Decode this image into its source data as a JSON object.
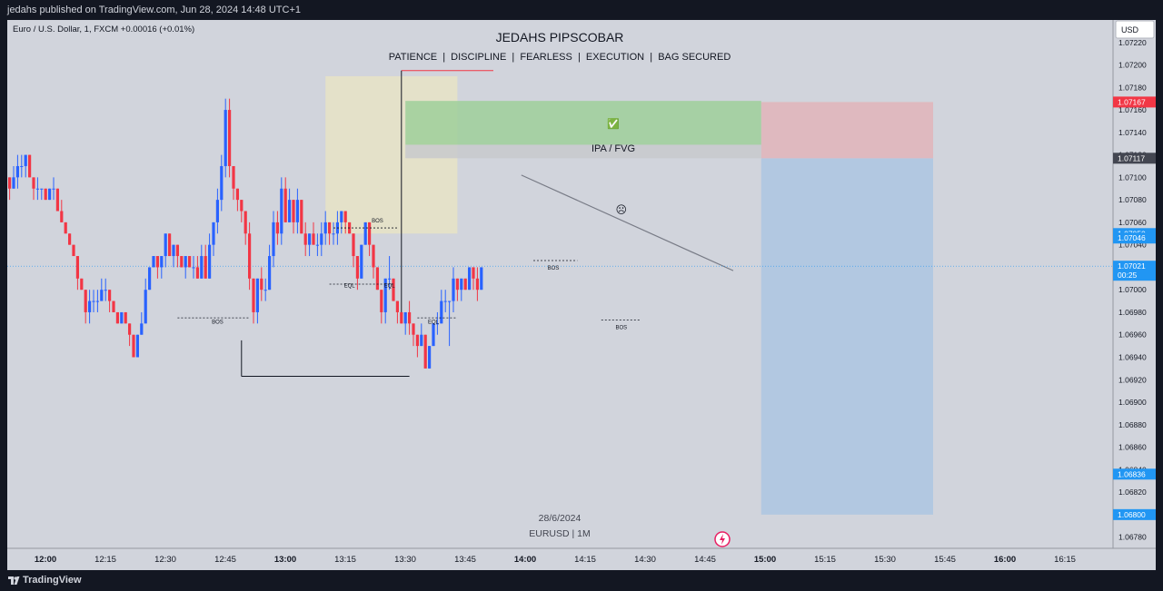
{
  "header": {
    "published_text": "jedahs published on TradingView.com, Jun 28, 2024 14:48 UTC+1"
  },
  "footer": {
    "brand": "TradingView"
  },
  "chart_data": {
    "type": "candlestick",
    "symbol_line": "Euro / U.S. Dollar, 1, FXCM  +0.00016 (+0.01%)",
    "title": "JEDAHS PIPSCOBAR",
    "subtitle": "PATIENCE  |  DISCIPLINE  |  FEARLESS  |  EXECUTION  |  BAG SECURED",
    "date_label": "28/6/2024",
    "instrument_label": "EURUSD | 1M",
    "currency": "USD",
    "ylim": [
      1.0677,
      1.0724
    ],
    "y_ticks": [
      "1.07220",
      "1.07200",
      "1.07180",
      "1.07160",
      "1.07140",
      "1.07120",
      "1.07100",
      "1.07080",
      "1.07060",
      "1.07040",
      "1.07020",
      "1.07000",
      "1.06980",
      "1.06960",
      "1.06940",
      "1.06920",
      "1.06900",
      "1.06880",
      "1.06860",
      "1.06840",
      "1.06820",
      "1.06800",
      "1.06780"
    ],
    "x_ticks": [
      {
        "label": "12:00",
        "bold": true,
        "minute": 0
      },
      {
        "label": "12:15",
        "bold": false,
        "minute": 15
      },
      {
        "label": "12:30",
        "bold": false,
        "minute": 30
      },
      {
        "label": "12:45",
        "bold": false,
        "minute": 45
      },
      {
        "label": "13:00",
        "bold": true,
        "minute": 60
      },
      {
        "label": "13:15",
        "bold": false,
        "minute": 75
      },
      {
        "label": "13:30",
        "bold": false,
        "minute": 90
      },
      {
        "label": "13:45",
        "bold": false,
        "minute": 105
      },
      {
        "label": "14:00",
        "bold": true,
        "minute": 120
      },
      {
        "label": "14:15",
        "bold": false,
        "minute": 135
      },
      {
        "label": "14:30",
        "bold": false,
        "minute": 150
      },
      {
        "label": "14:45",
        "bold": false,
        "minute": 165
      },
      {
        "label": "15:00",
        "bold": true,
        "minute": 180
      },
      {
        "label": "15:15",
        "bold": false,
        "minute": 195
      },
      {
        "label": "15:30",
        "bold": false,
        "minute": 210
      },
      {
        "label": "15:45",
        "bold": false,
        "minute": 225
      },
      {
        "label": "16:00",
        "bold": true,
        "minute": 240
      },
      {
        "label": "16:15",
        "bold": false,
        "minute": 255
      }
    ],
    "price_labels": [
      {
        "value": 1.07167,
        "text": "1.07167",
        "color": "#f23645"
      },
      {
        "value": 1.07117,
        "text": "1.07117",
        "color": "#434651"
      },
      {
        "value": 1.0705,
        "text": "1.07050",
        "color": "#2196f3"
      },
      {
        "value": 1.07046,
        "text": "1.07046",
        "color": "#2196f3"
      },
      {
        "value": 1.07021,
        "text": "1.07021",
        "sub": "00:25",
        "color": "#2196f3"
      },
      {
        "value": 1.06836,
        "text": "1.06836",
        "color": "#2196f3"
      },
      {
        "value": 1.068,
        "text": "1.06800",
        "color": "#2196f3"
      }
    ],
    "current_price": 1.07021,
    "colors": {
      "up": "#2962ff",
      "down": "#f23645",
      "background": "#d1d4dc",
      "axis": "#131722"
    },
    "candles_start_minute": -14,
    "candles": [
      [
        1.0708,
        1.0709,
        1.0707,
        1.0708
      ],
      [
        1.0708,
        1.071,
        1.0708,
        1.071
      ],
      [
        1.071,
        1.0711,
        1.0709,
        1.071
      ],
      [
        1.071,
        1.071,
        1.0708,
        1.0709
      ],
      [
        1.0709,
        1.0711,
        1.0709,
        1.071
      ],
      [
        1.071,
        1.0712,
        1.0709,
        1.0711
      ],
      [
        1.0711,
        1.0712,
        1.071,
        1.0711
      ],
      [
        1.0711,
        1.0712,
        1.071,
        1.0712
      ],
      [
        1.0712,
        1.0712,
        1.071,
        1.071
      ],
      [
        1.071,
        1.071,
        1.0708,
        1.0709
      ],
      [
        1.0709,
        1.071,
        1.0708,
        1.0709
      ],
      [
        1.0709,
        1.0709,
        1.0708,
        1.0709
      ],
      [
        1.0709,
        1.0709,
        1.0708,
        1.0708
      ],
      [
        1.0708,
        1.0709,
        1.0708,
        1.0709
      ],
      [
        1.0709,
        1.071,
        1.0708,
        1.0709
      ],
      [
        1.0709,
        1.0709,
        1.0707,
        1.0707
      ],
      [
        1.0707,
        1.0708,
        1.0706,
        1.0706
      ],
      [
        1.0706,
        1.0706,
        1.0705,
        1.0705
      ],
      [
        1.0705,
        1.0705,
        1.0704,
        1.0704
      ],
      [
        1.0704,
        1.0704,
        1.0703,
        1.0703
      ],
      [
        1.0703,
        1.0703,
        1.07,
        1.0701
      ],
      [
        1.0701,
        1.0701,
        1.07,
        1.07
      ],
      [
        1.07,
        1.07,
        1.0697,
        1.0698
      ],
      [
        1.0698,
        1.07,
        1.0697,
        1.0699
      ],
      [
        1.0699,
        1.07,
        1.0698,
        1.0699
      ],
      [
        1.0699,
        1.07,
        1.0698,
        1.0699
      ],
      [
        1.0699,
        1.0701,
        1.0699,
        1.07
      ],
      [
        1.07,
        1.0701,
        1.0699,
        1.07
      ],
      [
        1.07,
        1.07,
        1.0698,
        1.0699
      ],
      [
        1.0699,
        1.0699,
        1.0698,
        1.0698
      ],
      [
        1.0698,
        1.0698,
        1.0697,
        1.0697
      ],
      [
        1.0697,
        1.0698,
        1.0697,
        1.0698
      ],
      [
        1.0698,
        1.0698,
        1.0697,
        1.0697
      ],
      [
        1.0697,
        1.0697,
        1.0695,
        1.0696
      ],
      [
        1.0696,
        1.0696,
        1.0694,
        1.0694
      ],
      [
        1.0694,
        1.0696,
        1.0694,
        1.0696
      ],
      [
        1.0696,
        1.0698,
        1.0696,
        1.0697
      ],
      [
        1.0697,
        1.0701,
        1.0697,
        1.07
      ],
      [
        1.07,
        1.0702,
        1.07,
        1.0702
      ],
      [
        1.0702,
        1.0703,
        1.0702,
        1.0703
      ],
      [
        1.0703,
        1.0703,
        1.0701,
        1.0702
      ],
      [
        1.0702,
        1.0703,
        1.0701,
        1.0703
      ],
      [
        1.0703,
        1.0705,
        1.0702,
        1.0705
      ],
      [
        1.0705,
        1.0705,
        1.0703,
        1.0703
      ],
      [
        1.0703,
        1.0704,
        1.0702,
        1.0704
      ],
      [
        1.0704,
        1.0704,
        1.0702,
        1.0703
      ],
      [
        1.0703,
        1.0703,
        1.0702,
        1.0702
      ],
      [
        1.0702,
        1.0703,
        1.0701,
        1.0703
      ],
      [
        1.0703,
        1.0703,
        1.0702,
        1.0702
      ],
      [
        1.0702,
        1.0703,
        1.0701,
        1.0702
      ],
      [
        1.0702,
        1.0703,
        1.0701,
        1.0701
      ],
      [
        1.0701,
        1.0704,
        1.0701,
        1.0703
      ],
      [
        1.0703,
        1.0704,
        1.0701,
        1.0701
      ],
      [
        1.0701,
        1.0705,
        1.0701,
        1.0704
      ],
      [
        1.0704,
        1.0706,
        1.0703,
        1.0706
      ],
      [
        1.0706,
        1.0709,
        1.0705,
        1.0708
      ],
      [
        1.0708,
        1.0712,
        1.0707,
        1.0711
      ],
      [
        1.0711,
        1.0717,
        1.071,
        1.0716
      ],
      [
        1.0716,
        1.0717,
        1.071,
        1.0711
      ],
      [
        1.0711,
        1.0711,
        1.0708,
        1.0709
      ],
      [
        1.0709,
        1.0709,
        1.0707,
        1.0708
      ],
      [
        1.0708,
        1.0708,
        1.0706,
        1.0707
      ],
      [
        1.0707,
        1.0707,
        1.0704,
        1.0705
      ],
      [
        1.0705,
        1.0706,
        1.07,
        1.0701
      ],
      [
        1.0701,
        1.0701,
        1.0697,
        1.0698
      ],
      [
        1.0698,
        1.0701,
        1.0697,
        1.0701
      ],
      [
        1.0701,
        1.0702,
        1.0699,
        1.07
      ],
      [
        1.07,
        1.0701,
        1.0699,
        1.07
      ],
      [
        1.07,
        1.0704,
        1.07,
        1.0703
      ],
      [
        1.0703,
        1.0707,
        1.0702,
        1.0706
      ],
      [
        1.0706,
        1.0707,
        1.0704,
        1.0705
      ],
      [
        1.0705,
        1.071,
        1.0704,
        1.0709
      ],
      [
        1.0709,
        1.071,
        1.0706,
        1.0706
      ],
      [
        1.0706,
        1.0709,
        1.0706,
        1.0708
      ],
      [
        1.0708,
        1.0708,
        1.0705,
        1.0706
      ],
      [
        1.0706,
        1.0709,
        1.0705,
        1.0708
      ],
      [
        1.0708,
        1.0708,
        1.0705,
        1.0705
      ],
      [
        1.0705,
        1.0706,
        1.0703,
        1.0704
      ],
      [
        1.0704,
        1.0705,
        1.0703,
        1.0705
      ],
      [
        1.0705,
        1.0706,
        1.0704,
        1.0704
      ],
      [
        1.0704,
        1.0705,
        1.0703,
        1.0704
      ],
      [
        1.0704,
        1.0706,
        1.0703,
        1.0705
      ],
      [
        1.0705,
        1.0707,
        1.0704,
        1.0706
      ],
      [
        1.0706,
        1.0706,
        1.0704,
        1.0705
      ],
      [
        1.0705,
        1.0706,
        1.0704,
        1.0705
      ],
      [
        1.0705,
        1.0707,
        1.0704,
        1.0706
      ],
      [
        1.0706,
        1.0707,
        1.0705,
        1.0707
      ],
      [
        1.0707,
        1.0707,
        1.0705,
        1.0706
      ],
      [
        1.0706,
        1.0706,
        1.0705,
        1.0705
      ],
      [
        1.0705,
        1.0705,
        1.0702,
        1.0703
      ],
      [
        1.0703,
        1.0703,
        1.07,
        1.0701
      ],
      [
        1.0701,
        1.0704,
        1.0701,
        1.0704
      ],
      [
        1.0704,
        1.0706,
        1.0704,
        1.0706
      ],
      [
        1.0706,
        1.0706,
        1.0703,
        1.0704
      ],
      [
        1.0704,
        1.0704,
        1.0701,
        1.0702
      ],
      [
        1.0702,
        1.0702,
        1.07,
        1.07
      ],
      [
        1.07,
        1.07,
        1.0697,
        1.0698
      ],
      [
        1.0698,
        1.0701,
        1.0697,
        1.0701
      ],
      [
        1.0701,
        1.0703,
        1.07,
        1.0701
      ],
      [
        1.0701,
        1.0701,
        1.0699,
        1.0699
      ],
      [
        1.0699,
        1.0699,
        1.0697,
        1.0698
      ],
      [
        1.0698,
        1.0698,
        1.0697,
        1.0697
      ],
      [
        1.0697,
        1.0698,
        1.0696,
        1.0698
      ],
      [
        1.0698,
        1.0699,
        1.0696,
        1.0697
      ],
      [
        1.0697,
        1.0697,
        1.0695,
        1.0696
      ],
      [
        1.0696,
        1.0696,
        1.0694,
        1.0695
      ],
      [
        1.0695,
        1.0697,
        1.0695,
        1.0696
      ],
      [
        1.0696,
        1.0696,
        1.0693,
        1.0693
      ],
      [
        1.0693,
        1.0695,
        1.0693,
        1.0695
      ],
      [
        1.0695,
        1.0697,
        1.0695,
        1.0697
      ],
      [
        1.0697,
        1.0698,
        1.0696,
        1.0697
      ],
      [
        1.0697,
        1.07,
        1.0697,
        1.0699
      ],
      [
        1.0699,
        1.07,
        1.0698,
        1.0699
      ],
      [
        1.0699,
        1.0699,
        1.0695,
        1.0699
      ],
      [
        1.0699,
        1.0702,
        1.0698,
        1.0701
      ],
      [
        1.0701,
        1.0701,
        1.0699,
        1.07
      ],
      [
        1.07,
        1.0701,
        1.0699,
        1.0701
      ],
      [
        1.0701,
        1.0701,
        1.07,
        1.07
      ],
      [
        1.07,
        1.0702,
        1.07,
        1.0702
      ],
      [
        1.0702,
        1.0702,
        1.07,
        1.0701
      ],
      [
        1.0701,
        1.0702,
        1.0699,
        1.07
      ],
      [
        1.07,
        1.0702,
        1.07,
        1.0702
      ]
    ],
    "zones": {
      "range_box": {
        "x0": 68,
        "x1": 101,
        "y0": 1.0705,
        "y1": 1.0719,
        "fill": "#e8e3c6"
      },
      "top_line": {
        "x0": 87,
        "x1": 110,
        "y": 1.07195,
        "color": "#f23645"
      },
      "bottom_line": {
        "x0": 47,
        "x1": 89,
        "y": 1.06923,
        "color": "#131722"
      },
      "fvg_box": {
        "x0": 88,
        "x1": 177,
        "y0": 1.07129,
        "y1": 1.07168,
        "fill": "#9fcf9a"
      },
      "fvg_strip": {
        "x0": 88,
        "x1": 177,
        "y0": 1.07117,
        "y1": 1.07129,
        "fill": "#c8c9cd"
      },
      "stop_box": {
        "x0": 177,
        "x1": 220,
        "y0": 1.07117,
        "y1": 1.07167,
        "fill": "#e2b4ba"
      },
      "target_box": {
        "x0": 177,
        "x1": 220,
        "y0": 1.068,
        "y1": 1.07117,
        "fill": "#adc6e2"
      },
      "trendline": {
        "x0": 117,
        "y0": 1.07102,
        "x1": 170,
        "y1": 1.07017,
        "color": "#787b86"
      }
    },
    "annotations": [
      {
        "text": "IPA / FVG",
        "x": 140,
        "y": 1.07123,
        "size": 11
      },
      {
        "text": "BOS",
        "x": 81,
        "y": 1.0706,
        "size": 6
      },
      {
        "text": "EQL",
        "x": 74,
        "y": 1.07002,
        "size": 6
      },
      {
        "text": "EQL",
        "x": 84,
        "y": 1.07002,
        "size": 6
      },
      {
        "text": "EQL",
        "x": 95,
        "y": 1.0697,
        "size": 6
      },
      {
        "text": "BOS",
        "x": 41,
        "y": 1.0697,
        "size": 6
      },
      {
        "text": "BOS",
        "x": 125,
        "y": 1.07018,
        "size": 6
      },
      {
        "text": "BOS",
        "x": 142,
        "y": 1.06965,
        "size": 6
      },
      {
        "text": "☹",
        "x": 142,
        "y": 1.07068,
        "size": 12
      }
    ],
    "dashed_lines": [
      {
        "x0": 70,
        "x1": 86,
        "y": 1.07055
      },
      {
        "x0": 69,
        "x1": 85,
        "y": 1.07005
      },
      {
        "x0": 31,
        "x1": 49,
        "y": 1.06975
      },
      {
        "x0": 120,
        "x1": 131,
        "y": 1.07026
      },
      {
        "x0": 137,
        "x1": 147,
        "y": 1.06973
      },
      {
        "x0": 91,
        "x1": 101,
        "y": 1.06975
      }
    ],
    "check_mark": {
      "text": "✅",
      "x": 140,
      "y": 1.07148
    }
  }
}
